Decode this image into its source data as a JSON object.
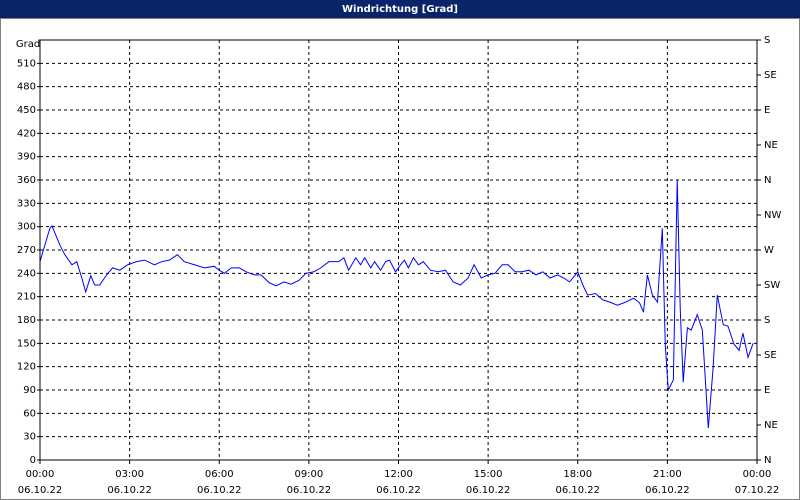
{
  "chart_data": {
    "type": "line",
    "title": "Windrichtung [Grad]",
    "y_label": "Grad",
    "xlim": [
      0,
      24
    ],
    "xticks": [
      {
        "value": 0,
        "label": "00:00",
        "date": "06.10.22"
      },
      {
        "value": 3,
        "label": "03:00",
        "date": "06.10.22"
      },
      {
        "value": 6,
        "label": "06:00",
        "date": "06.10.22"
      },
      {
        "value": 9,
        "label": "09:00",
        "date": "06.10.22"
      },
      {
        "value": 12,
        "label": "12:00",
        "date": "06.10.22"
      },
      {
        "value": 15,
        "label": "15:00",
        "date": "06.10.22"
      },
      {
        "value": 18,
        "label": "18:00",
        "date": "06.10.22"
      },
      {
        "value": 21,
        "label": "21:00",
        "date": "06.10.22"
      },
      {
        "value": 24,
        "label": "00:00",
        "date": "07.10.22"
      }
    ],
    "ylim": [
      0,
      540
    ],
    "yticks": [
      0,
      30,
      60,
      90,
      120,
      150,
      180,
      210,
      240,
      270,
      300,
      330,
      360,
      390,
      420,
      450,
      480,
      510
    ],
    "y2lim": [
      0,
      540
    ],
    "y2ticks": [
      {
        "value": 0,
        "label": "N"
      },
      {
        "value": 45,
        "label": "NE"
      },
      {
        "value": 90,
        "label": "E"
      },
      {
        "value": 135,
        "label": "SE"
      },
      {
        "value": 180,
        "label": "S"
      },
      {
        "value": 225,
        "label": "SW"
      },
      {
        "value": 270,
        "label": "W"
      },
      {
        "value": 315,
        "label": "NW"
      },
      {
        "value": 360,
        "label": "N"
      },
      {
        "value": 405,
        "label": "NE"
      },
      {
        "value": 450,
        "label": "E"
      },
      {
        "value": 495,
        "label": "SE"
      },
      {
        "value": 540,
        "label": "S"
      }
    ],
    "grid": true,
    "series": [
      {
        "color": "#0000ff",
        "x": [
          0,
          0.33,
          0.4,
          0.67,
          0.83,
          1.07,
          1.23,
          1.4,
          1.53,
          1.7,
          1.83,
          2,
          2.23,
          2.43,
          2.67,
          2.93,
          3.23,
          3.5,
          3.83,
          4.07,
          4.33,
          4.6,
          4.83,
          5.17,
          5.5,
          5.83,
          6,
          6.17,
          6.4,
          6.67,
          6.9,
          7.17,
          7.4,
          7.67,
          7.9,
          8.17,
          8.4,
          8.67,
          8.9,
          9.17,
          9.4,
          9.67,
          10,
          10.17,
          10.33,
          10.57,
          10.73,
          10.87,
          11.07,
          11.2,
          11.4,
          11.57,
          11.7,
          11.9,
          12.07,
          12.2,
          12.33,
          12.5,
          12.67,
          12.83,
          13.07,
          13.33,
          13.57,
          13.83,
          14.07,
          14.33,
          14.53,
          14.77,
          15,
          15.23,
          15.47,
          15.67,
          15.9,
          16.13,
          16.37,
          16.6,
          16.83,
          17.07,
          17.33,
          17.53,
          17.73,
          18,
          18.17,
          18.33,
          18.6,
          18.83,
          19.07,
          19.33,
          19.6,
          19.87,
          20.07,
          20.2,
          20.33,
          20.5,
          20.67,
          20.83,
          20.93,
          21.03,
          21.2,
          21.33,
          21.43,
          21.53,
          21.67,
          21.8,
          22,
          22.17,
          22.37,
          22.53,
          22.67,
          22.87,
          23.03,
          23.23,
          23.4,
          23.53,
          23.7,
          23.87
        ],
        "values": [
          255,
          298,
          301,
          276,
          264,
          251,
          255,
          234,
          216,
          237,
          225,
          225,
          238,
          247,
          244,
          251,
          255,
          257,
          251,
          255,
          257,
          264,
          255,
          251,
          247,
          249,
          244,
          240,
          247,
          247,
          242,
          238,
          238,
          228,
          224,
          229,
          226,
          231,
          240,
          242,
          247,
          255,
          255,
          260,
          244,
          260,
          251,
          260,
          247,
          255,
          244,
          255,
          257,
          242,
          251,
          257,
          247,
          260,
          251,
          255,
          244,
          242,
          244,
          229,
          225,
          234,
          251,
          234,
          238,
          240,
          251,
          251,
          242,
          242,
          244,
          238,
          242,
          234,
          238,
          234,
          229,
          242,
          225,
          212,
          214,
          206,
          203,
          199,
          203,
          208,
          202,
          190,
          238,
          212,
          203,
          298,
          148,
          90,
          103,
          360,
          195,
          100,
          170,
          167,
          187,
          167,
          41,
          118,
          212,
          174,
          172,
          149,
          141,
          163,
          132,
          150
        ]
      }
    ]
  }
}
